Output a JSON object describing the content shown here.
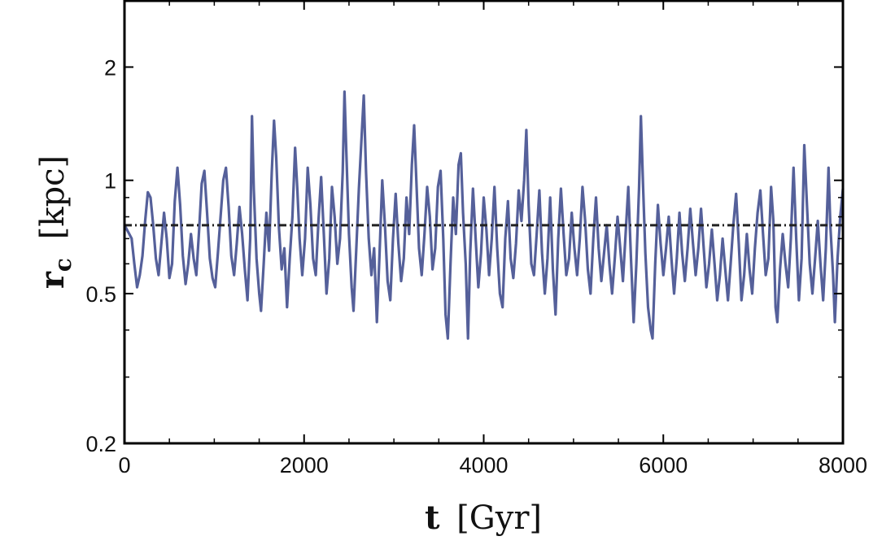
{
  "chart_data": {
    "type": "line",
    "title": "",
    "xlabel": {
      "symbol": "t",
      "unit": "[Gyr]"
    },
    "ylabel": {
      "symbol": "r",
      "subscript": "c",
      "unit": "[kpc]"
    },
    "xlim": [
      0,
      8000
    ],
    "ylim": [
      0.2,
      3.0
    ],
    "yscale": "log",
    "grid": false,
    "legend": "none",
    "x_ticks": [
      0,
      2000,
      4000,
      6000,
      8000
    ],
    "x_tick_labels": [
      "0",
      "2000",
      "4000",
      "6000",
      "8000"
    ],
    "y_ticks": [
      0.2,
      0.5,
      1,
      2
    ],
    "y_tick_labels": [
      "0.2",
      "0.5",
      "1",
      "2"
    ],
    "reference_line": {
      "y": 0.76,
      "style": "dot-dash",
      "color": "#222222"
    },
    "series": [
      {
        "color": "#55609a",
        "points": [
          [
            0,
            0.76
          ],
          [
            40,
            0.73
          ],
          [
            80,
            0.7
          ],
          [
            110,
            0.6
          ],
          [
            140,
            0.52
          ],
          [
            170,
            0.56
          ],
          [
            200,
            0.63
          ],
          [
            230,
            0.78
          ],
          [
            260,
            0.93
          ],
          [
            290,
            0.9
          ],
          [
            320,
            0.76
          ],
          [
            350,
            0.62
          ],
          [
            380,
            0.56
          ],
          [
            410,
            0.68
          ],
          [
            440,
            0.82
          ],
          [
            470,
            0.7
          ],
          [
            500,
            0.55
          ],
          [
            530,
            0.6
          ],
          [
            560,
            0.88
          ],
          [
            590,
            1.08
          ],
          [
            620,
            0.86
          ],
          [
            650,
            0.63
          ],
          [
            680,
            0.53
          ],
          [
            710,
            0.6
          ],
          [
            740,
            0.72
          ],
          [
            770,
            0.62
          ],
          [
            800,
            0.56
          ],
          [
            830,
            0.73
          ],
          [
            860,
            0.98
          ],
          [
            890,
            1.06
          ],
          [
            920,
            0.82
          ],
          [
            950,
            0.62
          ],
          [
            980,
            0.55
          ],
          [
            1010,
            0.52
          ],
          [
            1040,
            0.64
          ],
          [
            1070,
            0.8
          ],
          [
            1100,
            1.0
          ],
          [
            1130,
            1.08
          ],
          [
            1160,
            0.85
          ],
          [
            1190,
            0.63
          ],
          [
            1220,
            0.56
          ],
          [
            1250,
            0.68
          ],
          [
            1280,
            0.85
          ],
          [
            1310,
            0.72
          ],
          [
            1340,
            0.58
          ],
          [
            1370,
            0.48
          ],
          [
            1400,
            0.7
          ],
          [
            1420,
            1.48
          ],
          [
            1440,
            0.95
          ],
          [
            1470,
            0.62
          ],
          [
            1500,
            0.5
          ],
          [
            1520,
            0.45
          ],
          [
            1550,
            0.6
          ],
          [
            1580,
            0.82
          ],
          [
            1610,
            0.65
          ],
          [
            1640,
            1.05
          ],
          [
            1665,
            1.44
          ],
          [
            1690,
            1.15
          ],
          [
            1720,
            0.75
          ],
          [
            1750,
            0.58
          ],
          [
            1780,
            0.66
          ],
          [
            1810,
            0.46
          ],
          [
            1840,
            0.62
          ],
          [
            1870,
            0.8
          ],
          [
            1900,
            1.22
          ],
          [
            1925,
            0.94
          ],
          [
            1950,
            0.7
          ],
          [
            1980,
            0.56
          ],
          [
            2010,
            0.7
          ],
          [
            2040,
            1.08
          ],
          [
            2070,
            0.86
          ],
          [
            2100,
            0.62
          ],
          [
            2130,
            0.56
          ],
          [
            2160,
            0.78
          ],
          [
            2190,
            1.02
          ],
          [
            2220,
            0.72
          ],
          [
            2250,
            0.5
          ],
          [
            2280,
            0.62
          ],
          [
            2310,
            0.96
          ],
          [
            2340,
            0.8
          ],
          [
            2370,
            0.6
          ],
          [
            2400,
            0.7
          ],
          [
            2430,
            1.05
          ],
          [
            2450,
            1.72
          ],
          [
            2470,
            1.2
          ],
          [
            2500,
            0.72
          ],
          [
            2530,
            0.52
          ],
          [
            2550,
            0.45
          ],
          [
            2580,
            0.65
          ],
          [
            2610,
            0.95
          ],
          [
            2640,
            1.3
          ],
          [
            2665,
            1.68
          ],
          [
            2690,
            1.05
          ],
          [
            2720,
            0.7
          ],
          [
            2750,
            0.56
          ],
          [
            2780,
            0.66
          ],
          [
            2810,
            0.42
          ],
          [
            2840,
            0.64
          ],
          [
            2870,
            1.0
          ],
          [
            2900,
            0.76
          ],
          [
            2930,
            0.54
          ],
          [
            2960,
            0.48
          ],
          [
            2990,
            0.7
          ],
          [
            3020,
            0.92
          ],
          [
            3050,
            0.68
          ],
          [
            3080,
            0.54
          ],
          [
            3110,
            0.62
          ],
          [
            3140,
            0.9
          ],
          [
            3170,
            0.72
          ],
          [
            3200,
            1.1
          ],
          [
            3225,
            1.4
          ],
          [
            3250,
            1.0
          ],
          [
            3280,
            0.66
          ],
          [
            3310,
            0.56
          ],
          [
            3340,
            0.72
          ],
          [
            3370,
            0.96
          ],
          [
            3400,
            0.8
          ],
          [
            3430,
            0.58
          ],
          [
            3460,
            0.66
          ],
          [
            3490,
            0.96
          ],
          [
            3520,
            1.06
          ],
          [
            3550,
            0.7
          ],
          [
            3575,
            0.44
          ],
          [
            3600,
            0.38
          ],
          [
            3630,
            0.6
          ],
          [
            3660,
            0.9
          ],
          [
            3690,
            0.72
          ],
          [
            3720,
            1.1
          ],
          [
            3745,
            1.18
          ],
          [
            3770,
            0.82
          ],
          [
            3800,
            0.6
          ],
          [
            3825,
            0.38
          ],
          [
            3850,
            0.64
          ],
          [
            3880,
            0.95
          ],
          [
            3910,
            0.7
          ],
          [
            3940,
            0.52
          ],
          [
            3970,
            0.64
          ],
          [
            4000,
            0.9
          ],
          [
            4030,
            0.74
          ],
          [
            4060,
            0.56
          ],
          [
            4090,
            0.7
          ],
          [
            4120,
            0.96
          ],
          [
            4150,
            0.66
          ],
          [
            4180,
            0.5
          ],
          [
            4210,
            0.46
          ],
          [
            4240,
            0.7
          ],
          [
            4270,
            0.88
          ],
          [
            4300,
            0.62
          ],
          [
            4330,
            0.55
          ],
          [
            4360,
            0.68
          ],
          [
            4390,
            0.94
          ],
          [
            4420,
            0.78
          ],
          [
            4450,
            1.0
          ],
          [
            4475,
            1.36
          ],
          [
            4500,
            0.86
          ],
          [
            4530,
            0.6
          ],
          [
            4560,
            0.56
          ],
          [
            4590,
            0.72
          ],
          [
            4620,
            0.94
          ],
          [
            4650,
            0.64
          ],
          [
            4680,
            0.5
          ],
          [
            4710,
            0.62
          ],
          [
            4740,
            0.9
          ],
          [
            4770,
            0.58
          ],
          [
            4800,
            0.44
          ],
          [
            4830,
            0.7
          ],
          [
            4860,
            0.95
          ],
          [
            4890,
            0.72
          ],
          [
            4920,
            0.56
          ],
          [
            4950,
            0.62
          ],
          [
            4980,
            0.82
          ],
          [
            5010,
            0.66
          ],
          [
            5040,
            0.56
          ],
          [
            5070,
            0.7
          ],
          [
            5100,
            0.96
          ],
          [
            5130,
            0.78
          ],
          [
            5160,
            0.58
          ],
          [
            5190,
            0.5
          ],
          [
            5220,
            0.7
          ],
          [
            5250,
            0.9
          ],
          [
            5280,
            0.66
          ],
          [
            5310,
            0.54
          ],
          [
            5340,
            0.64
          ],
          [
            5370,
            0.76
          ],
          [
            5400,
            0.6
          ],
          [
            5430,
            0.5
          ],
          [
            5460,
            0.62
          ],
          [
            5490,
            0.8
          ],
          [
            5520,
            0.66
          ],
          [
            5550,
            0.54
          ],
          [
            5580,
            0.72
          ],
          [
            5610,
            0.96
          ],
          [
            5640,
            0.62
          ],
          [
            5670,
            0.42
          ],
          [
            5700,
            0.6
          ],
          [
            5730,
            0.95
          ],
          [
            5750,
            1.48
          ],
          [
            5775,
            0.96
          ],
          [
            5800,
            0.64
          ],
          [
            5830,
            0.46
          ],
          [
            5860,
            0.4
          ],
          [
            5880,
            0.38
          ],
          [
            5910,
            0.6
          ],
          [
            5940,
            0.86
          ],
          [
            5970,
            0.68
          ],
          [
            6000,
            0.56
          ],
          [
            6030,
            0.66
          ],
          [
            6060,
            0.8
          ],
          [
            6090,
            0.62
          ],
          [
            6120,
            0.5
          ],
          [
            6150,
            0.62
          ],
          [
            6180,
            0.82
          ],
          [
            6210,
            0.64
          ],
          [
            6240,
            0.54
          ],
          [
            6270,
            0.66
          ],
          [
            6300,
            0.84
          ],
          [
            6330,
            0.68
          ],
          [
            6360,
            0.56
          ],
          [
            6390,
            0.66
          ],
          [
            6420,
            0.84
          ],
          [
            6450,
            0.66
          ],
          [
            6480,
            0.52
          ],
          [
            6510,
            0.6
          ],
          [
            6540,
            0.74
          ],
          [
            6570,
            0.6
          ],
          [
            6600,
            0.48
          ],
          [
            6630,
            0.56
          ],
          [
            6660,
            0.7
          ],
          [
            6690,
            0.58
          ],
          [
            6720,
            0.48
          ],
          [
            6750,
            0.6
          ],
          [
            6780,
            0.76
          ],
          [
            6810,
            0.92
          ],
          [
            6840,
            0.68
          ],
          [
            6870,
            0.48
          ],
          [
            6900,
            0.56
          ],
          [
            6930,
            0.72
          ],
          [
            6960,
            0.58
          ],
          [
            6990,
            0.5
          ],
          [
            7020,
            0.66
          ],
          [
            7050,
            0.82
          ],
          [
            7080,
            0.94
          ],
          [
            7110,
            0.72
          ],
          [
            7140,
            0.56
          ],
          [
            7170,
            0.62
          ],
          [
            7200,
            0.96
          ],
          [
            7225,
            0.78
          ],
          [
            7250,
            0.46
          ],
          [
            7270,
            0.42
          ],
          [
            7300,
            0.58
          ],
          [
            7330,
            0.72
          ],
          [
            7360,
            0.6
          ],
          [
            7390,
            0.52
          ],
          [
            7420,
            0.7
          ],
          [
            7450,
            1.08
          ],
          [
            7480,
            0.7
          ],
          [
            7510,
            0.48
          ],
          [
            7540,
            0.62
          ],
          [
            7570,
            1.24
          ],
          [
            7600,
            0.86
          ],
          [
            7630,
            0.6
          ],
          [
            7660,
            0.5
          ],
          [
            7690,
            0.62
          ],
          [
            7720,
            0.78
          ],
          [
            7750,
            0.6
          ],
          [
            7780,
            0.48
          ],
          [
            7810,
            0.66
          ],
          [
            7840,
            1.08
          ],
          [
            7860,
            0.76
          ],
          [
            7890,
            0.56
          ],
          [
            7910,
            0.42
          ],
          [
            7940,
            0.62
          ],
          [
            7970,
            0.8
          ],
          [
            8000,
            0.95
          ]
        ]
      }
    ]
  }
}
